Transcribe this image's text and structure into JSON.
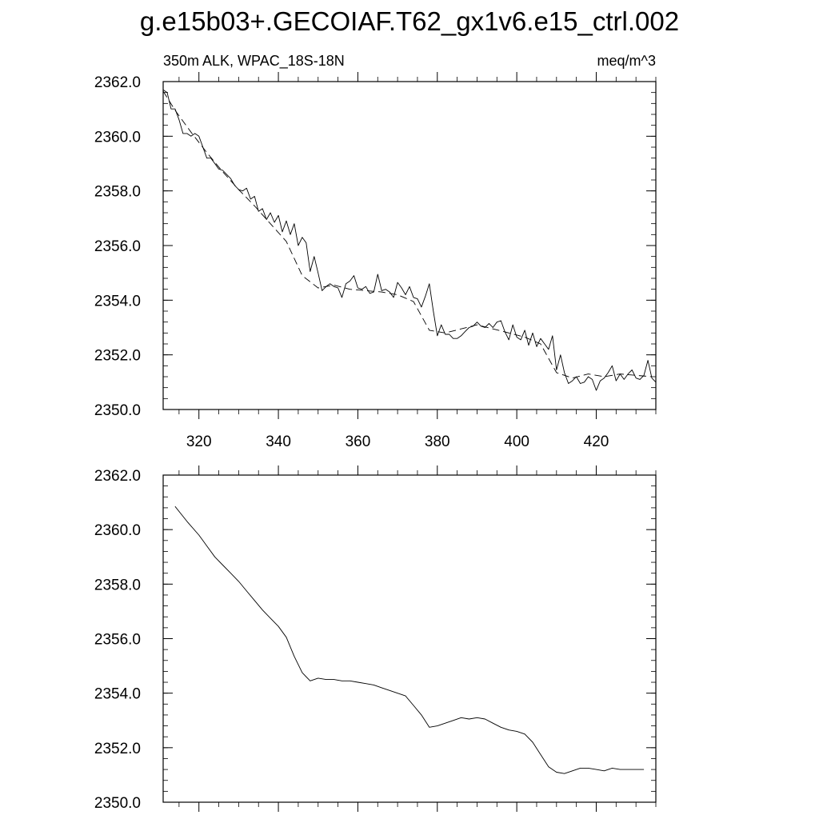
{
  "page": {
    "title": "g.e15b03+.GECOIAF.T62_gx1v6.e15_ctrl.002",
    "left_subtitle": "350m ALK, WPAC_18S-18N",
    "right_subtitle": "meq/m^3"
  },
  "chart_data": [
    {
      "type": "line",
      "title": "",
      "xlabel": "",
      "ylabel": "",
      "xlim": [
        311,
        435
      ],
      "ylim": [
        2350.0,
        2362.0
      ],
      "xticks": [
        320,
        340,
        360,
        380,
        400,
        420
      ],
      "xtick_labels": [
        "320",
        "340",
        "360",
        "380",
        "400",
        "420"
      ],
      "yticks": [
        2350.0,
        2352.0,
        2354.0,
        2356.0,
        2358.0,
        2360.0,
        2362.0
      ],
      "ytick_labels": [
        "2350.0",
        "2352.0",
        "2354.0",
        "2356.0",
        "2358.0",
        "2360.0",
        "2362.0"
      ],
      "grid": false,
      "series": [
        {
          "style": "solid",
          "x": [
            311,
            312,
            313,
            314,
            315,
            316,
            317,
            318,
            319,
            320,
            321,
            322,
            323,
            324,
            325,
            326,
            327,
            328,
            329,
            330,
            331,
            332,
            333,
            334,
            335,
            336,
            337,
            338,
            339,
            340,
            341,
            342,
            343,
            344,
            345,
            346,
            347,
            348,
            349,
            350,
            351,
            352,
            353,
            354,
            355,
            356,
            357,
            358,
            359,
            360,
            361,
            362,
            363,
            364,
            365,
            366,
            367,
            368,
            369,
            370,
            371,
            372,
            373,
            374,
            375,
            376,
            377,
            378,
            379,
            380,
            381,
            382,
            383,
            384,
            385,
            386,
            387,
            388,
            389,
            390,
            391,
            392,
            393,
            394,
            395,
            396,
            397,
            398,
            399,
            400,
            401,
            402,
            403,
            404,
            405,
            406,
            407,
            408,
            409,
            410,
            411,
            412,
            413,
            414,
            415,
            416,
            417,
            418,
            419,
            420,
            421,
            422,
            423,
            424,
            425,
            426,
            427,
            428,
            429,
            430,
            431,
            432,
            433,
            434,
            435
          ],
          "values": [
            2361.7,
            2361.6,
            2361.0,
            2361.0,
            2360.6,
            2360.1,
            2360.1,
            2360.0,
            2360.1,
            2360.0,
            2359.6,
            2359.2,
            2359.2,
            2359.0,
            2358.8,
            2358.75,
            2358.6,
            2358.45,
            2358.2,
            2358.05,
            2358.0,
            2358.1,
            2357.7,
            2357.8,
            2357.25,
            2357.35,
            2356.95,
            2357.2,
            2356.85,
            2357.1,
            2356.5,
            2356.9,
            2356.4,
            2356.8,
            2356.0,
            2356.3,
            2356.1,
            2355.05,
            2355.6,
            2355.0,
            2354.35,
            2354.5,
            2354.6,
            2354.5,
            2354.45,
            2354.1,
            2354.6,
            2354.7,
            2354.9,
            2354.45,
            2354.4,
            2354.5,
            2354.25,
            2354.3,
            2354.95,
            2354.35,
            2354.4,
            2354.3,
            2354.1,
            2354.65,
            2354.45,
            2354.2,
            2354.5,
            2354.1,
            2354.05,
            2353.75,
            2354.15,
            2354.6,
            2353.6,
            2352.7,
            2353.1,
            2352.75,
            2352.75,
            2352.6,
            2352.6,
            2352.7,
            2352.85,
            2353.0,
            2353.05,
            2353.2,
            2353.05,
            2353.0,
            2353.15,
            2353.0,
            2353.2,
            2353.25,
            2352.85,
            2352.55,
            2353.1,
            2352.65,
            2352.55,
            2352.9,
            2352.35,
            2352.8,
            2352.3,
            2352.6,
            2352.4,
            2352.2,
            2352.7,
            2351.45,
            2352.0,
            2351.35,
            2350.95,
            2351.05,
            2351.2,
            2350.95,
            2351.0,
            2351.2,
            2351.1,
            2350.7,
            2351.05,
            2351.15,
            2351.35,
            2351.6,
            2351.05,
            2351.3,
            2351.1,
            2351.3,
            2351.45,
            2351.15,
            2351.1,
            2351.25,
            2351.8,
            2351.15,
            2351.0
          ]
        },
        {
          "style": "dashed",
          "x": [
            311,
            314,
            318,
            322,
            326,
            330,
            334,
            338,
            342,
            346,
            350,
            354,
            358,
            362,
            366,
            370,
            374,
            378,
            382,
            386,
            390,
            394,
            398,
            402,
            406,
            410,
            414,
            418,
            422,
            426,
            430,
            434
          ],
          "values": [
            2361.65,
            2360.95,
            2360.15,
            2359.4,
            2358.7,
            2358.05,
            2357.45,
            2356.8,
            2356.15,
            2354.9,
            2354.45,
            2354.55,
            2354.4,
            2354.35,
            2354.3,
            2354.2,
            2353.95,
            2352.9,
            2352.8,
            2352.95,
            2353.1,
            2352.95,
            2352.8,
            2352.65,
            2352.4,
            2351.35,
            2351.15,
            2351.3,
            2351.2,
            2351.3,
            2351.25,
            2351.2
          ]
        }
      ]
    },
    {
      "type": "line",
      "title": "",
      "xlabel": "",
      "ylabel": "",
      "xlim": [
        311,
        435
      ],
      "ylim": [
        2350.0,
        2362.0
      ],
      "xticks": [
        320,
        340,
        360,
        380,
        400,
        420
      ],
      "xtick_labels": [],
      "yticks": [
        2350.0,
        2352.0,
        2354.0,
        2356.0,
        2358.0,
        2360.0,
        2362.0
      ],
      "ytick_labels": [
        "2350.0",
        "2352.0",
        "2354.0",
        "2356.0",
        "2358.0",
        "2360.0",
        "2362.0"
      ],
      "grid": false,
      "series": [
        {
          "style": "solid",
          "x": [
            314,
            317,
            320,
            322,
            324,
            326,
            328,
            330,
            332,
            334,
            336,
            338,
            340,
            342,
            344,
            346,
            348,
            350,
            352,
            354,
            356,
            358,
            360,
            362,
            364,
            366,
            368,
            370,
            372,
            374,
            376,
            378,
            380,
            382,
            384,
            386,
            388,
            390,
            392,
            394,
            396,
            398,
            400,
            402,
            404,
            406,
            408,
            410,
            412,
            414,
            416,
            418,
            420,
            422,
            424,
            426,
            428,
            430,
            432
          ],
          "values": [
            2360.85,
            2360.3,
            2359.8,
            2359.4,
            2359.0,
            2358.7,
            2358.4,
            2358.1,
            2357.75,
            2357.4,
            2357.05,
            2356.75,
            2356.45,
            2356.05,
            2355.35,
            2354.75,
            2354.45,
            2354.55,
            2354.5,
            2354.5,
            2354.45,
            2354.45,
            2354.4,
            2354.35,
            2354.3,
            2354.2,
            2354.1,
            2354.0,
            2353.9,
            2353.55,
            2353.2,
            2352.75,
            2352.8,
            2352.9,
            2353.0,
            2353.1,
            2353.05,
            2353.1,
            2353.05,
            2352.9,
            2352.75,
            2352.65,
            2352.6,
            2352.5,
            2352.2,
            2351.75,
            2351.3,
            2351.1,
            2351.05,
            2351.15,
            2351.25,
            2351.25,
            2351.2,
            2351.15,
            2351.25,
            2351.2,
            2351.2,
            2351.2,
            2351.2
          ]
        }
      ]
    }
  ]
}
